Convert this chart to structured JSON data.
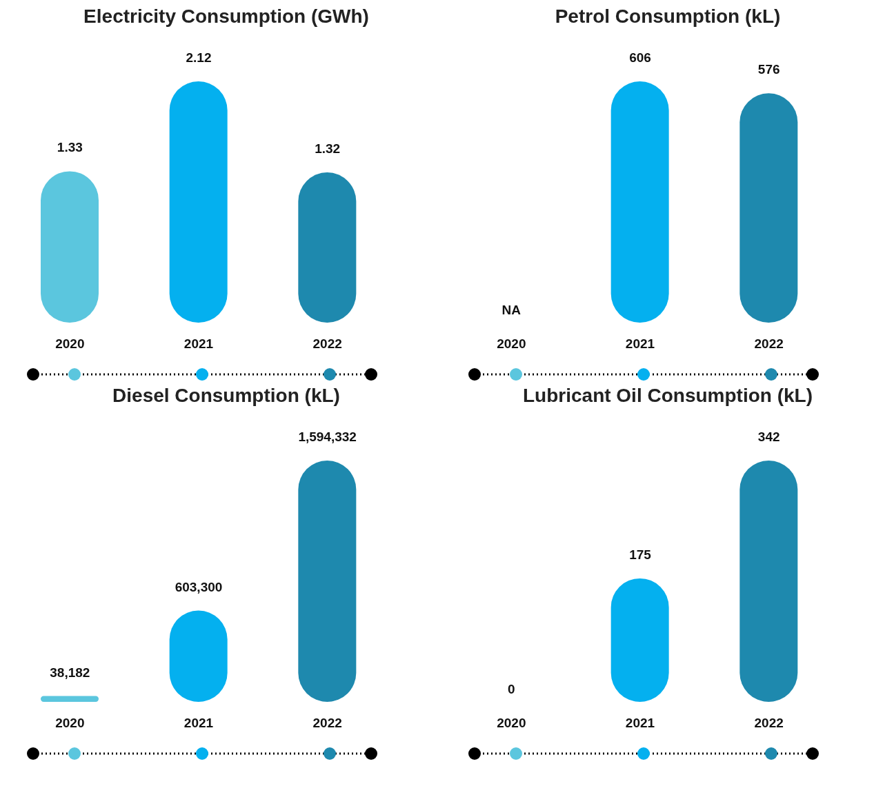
{
  "chart_data": [
    {
      "type": "bar",
      "title": "Electricity Consumption (GWh)",
      "categories": [
        "2020",
        "2021",
        "2022"
      ],
      "values": [
        1.33,
        2.12,
        1.32
      ],
      "colors": [
        "#5bc6de",
        "#04b0ef",
        "#1e89ae"
      ],
      "value_labels": [
        "1.33",
        "2.12",
        "1.32"
      ]
    },
    {
      "type": "bar",
      "title": "Petrol Consumption (kL)",
      "categories": [
        "2020",
        "2021",
        "2022"
      ],
      "values": [
        null,
        606,
        576
      ],
      "colors": [
        "#5bc6de",
        "#04b0ef",
        "#1e89ae"
      ],
      "value_labels": [
        "NA",
        "606",
        "576"
      ]
    },
    {
      "type": "bar",
      "title": "Diesel Consumption (kL)",
      "categories": [
        "2020",
        "2021",
        "2022"
      ],
      "values": [
        38182,
        603300,
        1594332
      ],
      "colors": [
        "#5bc6de",
        "#04b0ef",
        "#1e89ae"
      ],
      "value_labels": [
        "38,182",
        "603,300",
        "1,594,332"
      ]
    },
    {
      "type": "bar",
      "title": "Lubricant Oil Consumption (kL)",
      "categories": [
        "2020",
        "2021",
        "2022"
      ],
      "values": [
        0,
        175,
        342
      ],
      "colors": [
        "#5bc6de",
        "#04b0ef",
        "#1e89ae"
      ],
      "value_labels": [
        "0",
        "175",
        "342"
      ]
    }
  ]
}
